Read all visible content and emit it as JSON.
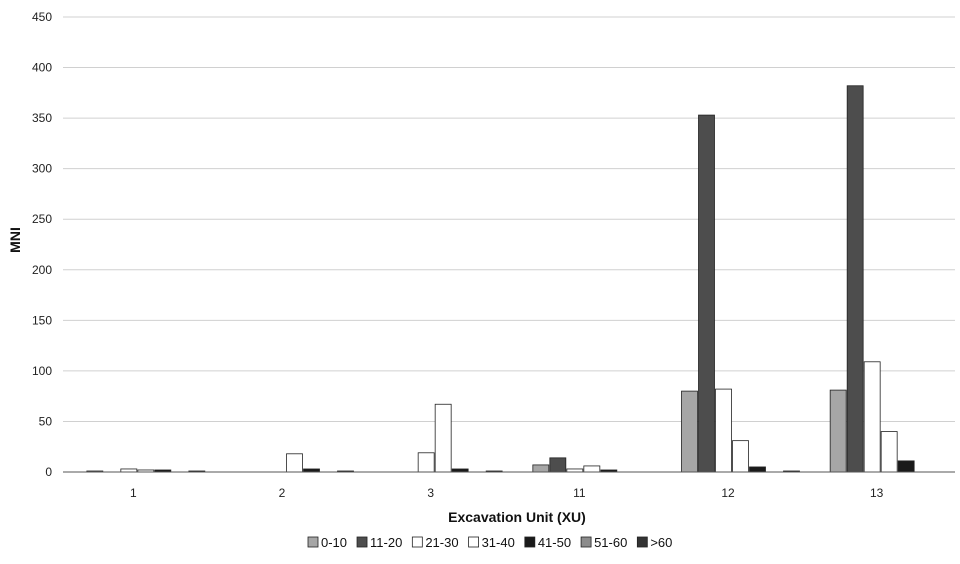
{
  "chart_data": {
    "type": "bar",
    "title": "",
    "xlabel": "Excavation Unit (XU)",
    "ylabel": "MNI",
    "ylim": [
      0,
      450
    ],
    "yticks": [
      0,
      50,
      100,
      150,
      200,
      250,
      300,
      350,
      400,
      450
    ],
    "grid": true,
    "legend_position": "bottom",
    "categories": [
      "1",
      "2",
      "3",
      "11",
      "12",
      "13"
    ],
    "series": [
      {
        "name": "0-10",
        "color": "#a6a6a6",
        "values": [
          1,
          0,
          0,
          7,
          80,
          81
        ]
      },
      {
        "name": "11-20",
        "color": "#4d4d4d",
        "values": [
          0,
          0,
          0,
          14,
          353,
          382
        ]
      },
      {
        "name": "21-30",
        "color": "#ffffff",
        "values": [
          3,
          0,
          19,
          3,
          82,
          109
        ]
      },
      {
        "name": "31-40",
        "color": "#ffffff",
        "values": [
          2,
          18,
          67,
          6,
          31,
          40
        ]
      },
      {
        "name": "41-50",
        "color": "#1a1a1a",
        "values": [
          2,
          3,
          3,
          2,
          5,
          11
        ]
      },
      {
        "name": "51-60",
        "color": "#8c8c8c",
        "values": [
          0,
          0,
          0,
          0,
          0,
          0
        ]
      },
      {
        "name": ">60",
        "color": "#333333",
        "values": [
          1,
          1,
          1,
          0,
          1,
          0
        ]
      }
    ]
  }
}
